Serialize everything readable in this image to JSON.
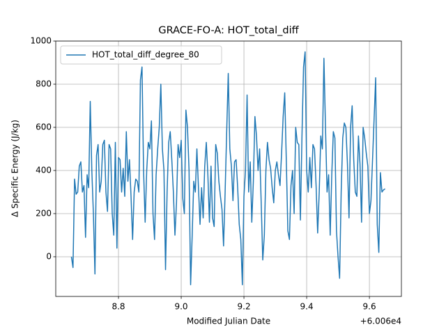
{
  "chart_data": {
    "type": "line",
    "title": "GRACE-FO-A: HOT_total_diff",
    "xlabel": "Modified Julian Date",
    "ylabel": "Δ Specific Energy (J/kg)",
    "x_offset_label": "+6.006e4",
    "x": [
      60068.65,
      60068.655,
      60068.66,
      60068.665,
      60068.67,
      60068.675,
      60068.68,
      60068.685,
      60068.69,
      60068.695,
      60068.7,
      60068.705,
      60068.71,
      60068.715,
      60068.72,
      60068.725,
      60068.73,
      60068.735,
      60068.74,
      60068.745,
      60068.75,
      60068.755,
      60068.76,
      60068.765,
      60068.77,
      60068.775,
      60068.78,
      60068.785,
      60068.79,
      60068.795,
      60068.8,
      60068.805,
      60068.81,
      60068.815,
      60068.82,
      60068.825,
      60068.83,
      60068.835,
      60068.84,
      60068.845,
      60068.85,
      60068.855,
      60068.86,
      60068.865,
      60068.87,
      60068.875,
      60068.88,
      60068.885,
      60068.89,
      60068.895,
      60068.9,
      60068.905,
      60068.91,
      60068.915,
      60068.92,
      60068.925,
      60068.93,
      60068.935,
      60068.94,
      60068.945,
      60068.95,
      60068.955,
      60068.96,
      60068.965,
      60068.97,
      60068.975,
      60068.98,
      60068.985,
      60068.99,
      60068.995,
      60069.0,
      60069.005,
      60069.01,
      60069.015,
      60069.02,
      60069.025,
      60069.03,
      60069.035,
      60069.04,
      60069.045,
      60069.05,
      60069.055,
      60069.06,
      60069.065,
      60069.07,
      60069.075,
      60069.08,
      60069.085,
      60069.09,
      60069.095,
      60069.1,
      60069.105,
      60069.11,
      60069.115,
      60069.12,
      60069.125,
      60069.13,
      60069.135,
      60069.14,
      60069.145,
      60069.15,
      60069.155,
      60069.16,
      60069.165,
      60069.17,
      60069.175,
      60069.18,
      60069.185,
      60069.19,
      60069.195,
      60069.2,
      60069.205,
      60069.21,
      60069.215,
      60069.22,
      60069.225,
      60069.23,
      60069.235,
      60069.24,
      60069.245,
      60069.25,
      60069.255,
      60069.26,
      60069.265,
      60069.27,
      60069.275,
      60069.28,
      60069.285,
      60069.29,
      60069.295,
      60069.3,
      60069.305,
      60069.31,
      60069.315,
      60069.32,
      60069.325,
      60069.33,
      60069.335,
      60069.34,
      60069.345,
      60069.35,
      60069.355,
      60069.36,
      60069.365,
      60069.37,
      60069.375,
      60069.38,
      60069.385,
      60069.39,
      60069.395,
      60069.4,
      60069.405,
      60069.41,
      60069.415,
      60069.42,
      60069.425,
      60069.43,
      60069.435,
      60069.44,
      60069.445,
      60069.45,
      60069.455,
      60069.46,
      60069.465,
      60069.47,
      60069.475,
      60069.48,
      60069.485,
      60069.49,
      60069.495,
      60069.5,
      60069.505,
      60069.51,
      60069.515,
      60069.52,
      60069.525,
      60069.53,
      60069.535,
      60069.54,
      60069.545,
      60069.55,
      60069.555,
      60069.56,
      60069.565,
      60069.57,
      60069.575,
      60069.58,
      60069.585,
      60069.59,
      60069.595,
      60069.6,
      60069.605,
      60069.61,
      60069.615,
      60069.62,
      60069.625,
      60069.63,
      60069.635,
      60069.64,
      60069.645,
      60069.65
    ],
    "series": [
      {
        "name": "HOT_total_diff_degree_80",
        "color": "#1f77b4",
        "values": [
          0,
          -50,
          360,
          290,
          300,
          420,
          440,
          300,
          330,
          90,
          380,
          320,
          720,
          400,
          200,
          -80,
          470,
          520,
          300,
          350,
          520,
          540,
          300,
          210,
          520,
          500,
          200,
          100,
          530,
          40,
          460,
          450,
          300,
          410,
          280,
          580,
          350,
          450,
          280,
          80,
          300,
          360,
          350,
          300,
          820,
          880,
          400,
          160,
          400,
          530,
          500,
          630,
          200,
          80,
          380,
          500,
          600,
          800,
          500,
          400,
          -60,
          300,
          530,
          580,
          450,
          300,
          100,
          250,
          520,
          460,
          540,
          270,
          200,
          680,
          600,
          400,
          -130,
          100,
          350,
          300,
          500,
          320,
          150,
          320,
          180,
          420,
          530,
          380,
          160,
          420,
          180,
          140,
          520,
          480,
          350,
          280,
          220,
          50,
          300,
          580,
          850,
          500,
          420,
          260,
          440,
          450,
          320,
          150,
          80,
          -130,
          280,
          400,
          750,
          300,
          440,
          160,
          350,
          650,
          560,
          400,
          500,
          250,
          -15,
          100,
          400,
          530,
          450,
          410,
          320,
          250,
          400,
          440,
          380,
          330,
          480,
          650,
          760,
          450,
          120,
          80,
          330,
          400,
          200,
          600,
          530,
          520,
          170,
          560,
          880,
          950,
          400,
          300,
          460,
          320,
          520,
          500,
          330,
          110,
          300,
          560,
          500,
          920,
          600,
          300,
          380,
          100,
          380,
          580,
          550,
          120,
          0,
          -100,
          300,
          550,
          620,
          600,
          430,
          180,
          600,
          700,
          450,
          300,
          280,
          560,
          430,
          160,
          600,
          550,
          480,
          420,
          200,
          260,
          450,
          640,
          830,
          150,
          20,
          390,
          300,
          310,
          315
        ]
      }
    ],
    "xlim": [
      60068.6,
      60069.702
    ],
    "ylim": [
      -184,
      1000
    ],
    "xticks": [
      {
        "value": 60068.8,
        "label": "8.8"
      },
      {
        "value": 60069.0,
        "label": "9.0"
      },
      {
        "value": 60069.2,
        "label": "9.2"
      },
      {
        "value": 60069.4,
        "label": "9.4"
      },
      {
        "value": 60069.6,
        "label": "9.6"
      }
    ],
    "yticks": [
      0,
      200,
      400,
      600,
      800,
      1000
    ],
    "grid": true,
    "legend": "upper left"
  }
}
